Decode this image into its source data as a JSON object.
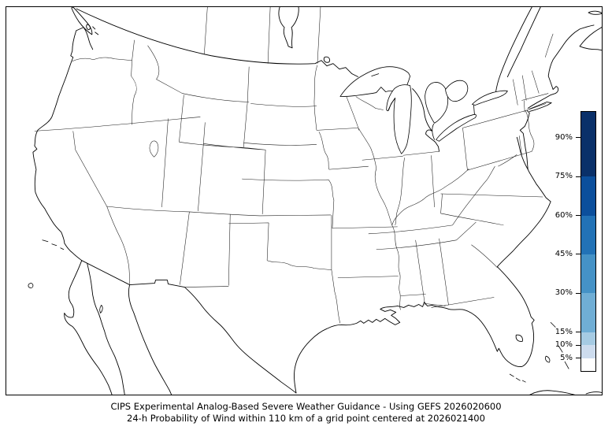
{
  "figure": {
    "background": "#ffffff",
    "frame_color": "#000000"
  },
  "caption": {
    "line1": "CIPS Experimental Analog-Based Severe Weather Guidance - Using GEFS 2026020600",
    "line2": "24-h Probability of Wind within 110 km of a grid point centered at 2026021400"
  },
  "forecast": {
    "product": "CIPS Experimental Analog-Based Severe Weather Guidance",
    "model": "GEFS",
    "initialization": "2026020600",
    "valid_center": "2026021400",
    "hazard": "Wind",
    "radius_km": "110",
    "period_hours": "24"
  },
  "map": {
    "region": "Contiguous United States with state borders, southern Canada, northern Mexico, Cuba and Bahamas",
    "land_color": "#ffffff",
    "boundary_color": "#000000",
    "probability_shading": "none visible (all values below 5%)"
  },
  "colorbar": {
    "unit": "%",
    "min": 0,
    "max": 100,
    "outline_color": "#000000",
    "tick_labels": [
      "5%",
      "10%",
      "15%",
      "30%",
      "45%",
      "60%",
      "75%",
      "90%"
    ],
    "ticks": [
      {
        "value": 5,
        "label": "5%"
      },
      {
        "value": 10,
        "label": "10%"
      },
      {
        "value": 15,
        "label": "15%"
      },
      {
        "value": 30,
        "label": "30%"
      },
      {
        "value": 45,
        "label": "45%"
      },
      {
        "value": 60,
        "label": "60%"
      },
      {
        "value": 75,
        "label": "75%"
      },
      {
        "value": 90,
        "label": "90%"
      }
    ],
    "segments": [
      {
        "from": 0,
        "to": 5,
        "color": "#ffffff"
      },
      {
        "from": 5,
        "to": 10,
        "color": "#cddcee"
      },
      {
        "from": 10,
        "to": 15,
        "color": "#a6cbe3"
      },
      {
        "from": 15,
        "to": 30,
        "color": "#70aed5"
      },
      {
        "from": 30,
        "to": 45,
        "color": "#4592c6"
      },
      {
        "from": 45,
        "to": 60,
        "color": "#2272b6"
      },
      {
        "from": 60,
        "to": 75,
        "color": "#0c4f9c"
      },
      {
        "from": 75,
        "to": 100,
        "color": "#0a3069"
      }
    ]
  }
}
